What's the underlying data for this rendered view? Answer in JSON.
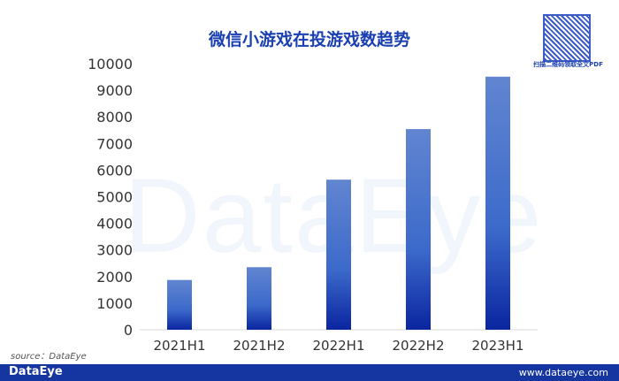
{
  "chart_data": {
    "type": "bar",
    "title": "微信小游戏在投游戏数趋势",
    "categories": [
      "2021H1",
      "2021H2",
      "2022H1",
      "2022H2",
      "2023H1"
    ],
    "values": [
      1870,
      2350,
      5640,
      7540,
      9510
    ],
    "ylim": [
      0,
      10000
    ],
    "yticks": [
      "0",
      "1000",
      "2000",
      "3000",
      "4000",
      "5000",
      "6000",
      "7000",
      "8000",
      "9000",
      "10000"
    ],
    "xlabel": "",
    "ylabel": "",
    "grid": false,
    "colors": {
      "bar_top": "#6185d0",
      "bar_bottom": "#0a25a0"
    }
  },
  "watermark": "DataEye",
  "qr_caption": "扫描二维码领取全文PDF",
  "source": "source：DataEye",
  "footer": {
    "logo": "DataEye",
    "url": "www.dataeye.com"
  }
}
